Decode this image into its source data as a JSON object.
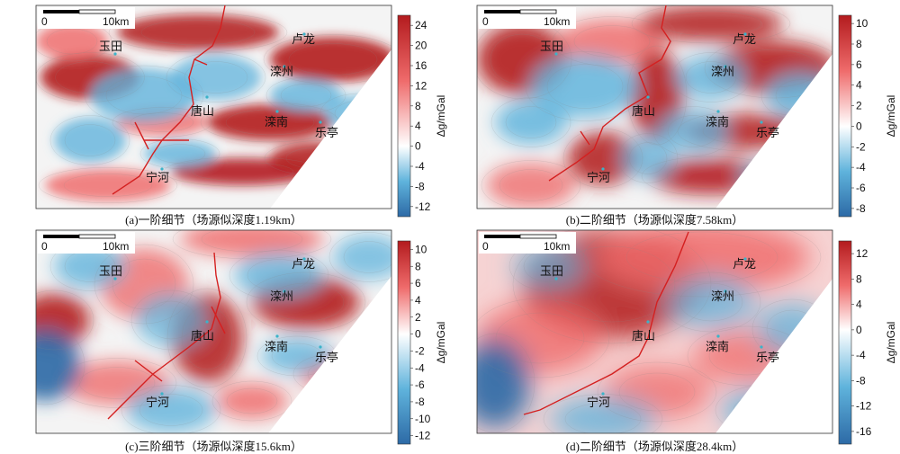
{
  "colors": {
    "neg_strong": "#2d6aa6",
    "neg_mid": "#5fb3dc",
    "zero": "#ffffff",
    "pos_mid": "#ef6b6b",
    "pos_strong": "#b31b1e",
    "fault": "#d42020",
    "city_dot": "#3bb3c9"
  },
  "unit_label": "Δg/mGal",
  "scale_bar": {
    "start_label": "0",
    "end_label": "10km"
  },
  "cities": [
    "玉田",
    "卢龙",
    "滦州",
    "唐山",
    "滦南",
    "乐亭",
    "宁河"
  ],
  "chart_data": [
    {
      "type": "heatmap",
      "caption": "(a)一阶细节（场源似深度1.19km）",
      "colorbar": {
        "ticks": [
          24,
          20,
          16,
          12,
          8,
          4,
          0,
          -4,
          -8,
          -12
        ],
        "range": [
          -14,
          26
        ]
      }
    },
    {
      "type": "heatmap",
      "caption": "(b)二阶细节（场源似深度7.58km）",
      "colorbar": {
        "ticks": [
          10,
          8,
          6,
          4,
          2,
          0,
          -2,
          -4,
          -6,
          -8
        ],
        "range": [
          -8.8,
          10.8
        ]
      }
    },
    {
      "type": "heatmap",
      "caption": "(c)三阶细节（场源似深度15.6km）",
      "colorbar": {
        "ticks": [
          10,
          8,
          6,
          4,
          2,
          0,
          -2,
          -4,
          -6,
          -8,
          -10,
          -12
        ],
        "range": [
          -13,
          11
        ]
      }
    },
    {
      "type": "heatmap",
      "caption": "(d)二阶细节（场源似深度28.4km）",
      "colorbar": {
        "ticks": [
          12,
          8,
          4,
          0,
          -4,
          -8,
          -12,
          -16
        ],
        "range": [
          -18,
          14
        ]
      }
    }
  ]
}
